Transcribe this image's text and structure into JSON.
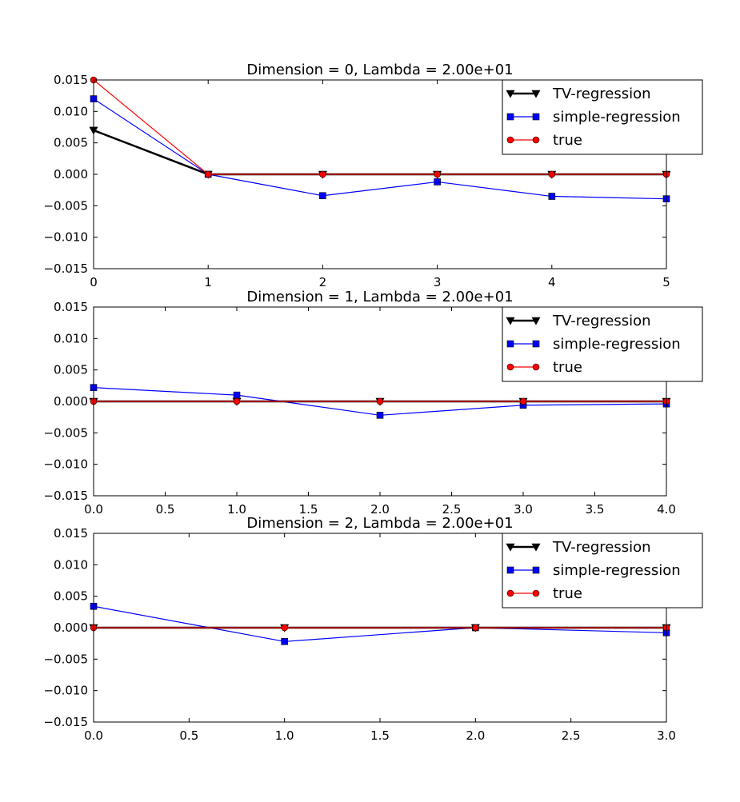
{
  "chart_data": [
    {
      "type": "line",
      "title": "Dimension = 0, Lambda = 2.00e+01",
      "xlabel": "",
      "ylabel": "",
      "xlim": [
        0,
        5
      ],
      "ylim": [
        -0.015,
        0.015
      ],
      "xticks": [
        "0",
        "1",
        "2",
        "3",
        "4",
        "5"
      ],
      "yticks": [
        "0.015",
        "0.010",
        "0.005",
        "0.000",
        "−0.005",
        "−0.010",
        "−0.015"
      ],
      "legend_position": "top-right",
      "grid": false,
      "x": [
        0,
        1,
        2,
        3,
        4,
        5
      ],
      "series": [
        {
          "name": "TV-regression",
          "color": "#000000",
          "marker": "triangle-down",
          "values": [
            0.007,
            0,
            0,
            0,
            0,
            0
          ]
        },
        {
          "name": "simple-regression",
          "color": "#0000ff",
          "marker": "square",
          "values": [
            0.012,
            0,
            -0.0034,
            -0.0012,
            -0.0035,
            -0.0039
          ]
        },
        {
          "name": "true",
          "color": "#ff0000",
          "marker": "circle",
          "values": [
            0.015,
            0,
            0,
            0,
            0,
            0
          ]
        }
      ]
    },
    {
      "type": "line",
      "title": "Dimension = 1, Lambda = 2.00e+01",
      "xlabel": "",
      "ylabel": "",
      "xlim": [
        0,
        4
      ],
      "ylim": [
        -0.015,
        0.015
      ],
      "xticks": [
        "0.0",
        "0.5",
        "1.0",
        "1.5",
        "2.0",
        "2.5",
        "3.0",
        "3.5",
        "4.0"
      ],
      "yticks": [
        "0.015",
        "0.010",
        "0.005",
        "0.000",
        "−0.005",
        "−0.010",
        "−0.015"
      ],
      "legend_position": "top-right",
      "grid": false,
      "x": [
        0,
        1,
        2,
        3,
        4
      ],
      "series": [
        {
          "name": "TV-regression",
          "color": "#000000",
          "marker": "triangle-down",
          "values": [
            0,
            0,
            0,
            0,
            0
          ]
        },
        {
          "name": "simple-regression",
          "color": "#0000ff",
          "marker": "square",
          "values": [
            0.0022,
            0.001,
            -0.0022,
            -0.0006,
            -0.0004
          ]
        },
        {
          "name": "true",
          "color": "#ff0000",
          "marker": "circle",
          "values": [
            0,
            0,
            0,
            0,
            0
          ]
        }
      ]
    },
    {
      "type": "line",
      "title": "Dimension = 2, Lambda = 2.00e+01",
      "xlabel": "",
      "ylabel": "",
      "xlim": [
        0,
        3
      ],
      "ylim": [
        -0.015,
        0.015
      ],
      "xticks": [
        "0.0",
        "0.5",
        "1.0",
        "1.5",
        "2.0",
        "2.5",
        "3.0"
      ],
      "yticks": [
        "0.015",
        "0.010",
        "0.005",
        "0.000",
        "−0.005",
        "−0.010",
        "−0.015"
      ],
      "legend_position": "top-right",
      "grid": false,
      "x": [
        0,
        1,
        2,
        3
      ],
      "series": [
        {
          "name": "TV-regression",
          "color": "#000000",
          "marker": "triangle-down",
          "values": [
            0,
            0,
            0,
            0
          ]
        },
        {
          "name": "simple-regression",
          "color": "#0000ff",
          "marker": "square",
          "values": [
            0.0034,
            -0.0022,
            0,
            -0.0008
          ]
        },
        {
          "name": "true",
          "color": "#ff0000",
          "marker": "circle",
          "values": [
            0,
            0,
            0,
            0
          ]
        }
      ]
    }
  ]
}
